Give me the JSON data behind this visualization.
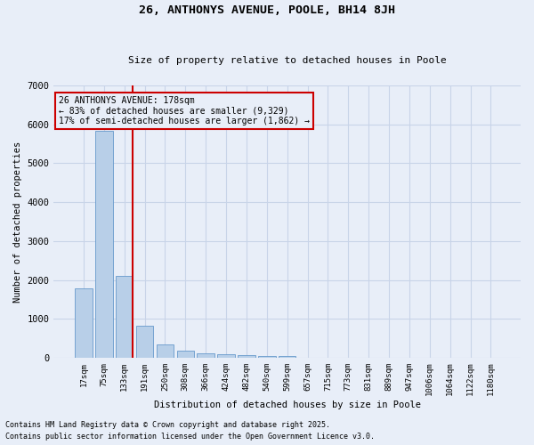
{
  "title1": "26, ANTHONYS AVENUE, POOLE, BH14 8JH",
  "title2": "Size of property relative to detached houses in Poole",
  "xlabel": "Distribution of detached houses by size in Poole",
  "ylabel": "Number of detached properties",
  "categories": [
    "17sqm",
    "75sqm",
    "133sqm",
    "191sqm",
    "250sqm",
    "308sqm",
    "366sqm",
    "424sqm",
    "482sqm",
    "540sqm",
    "599sqm",
    "657sqm",
    "715sqm",
    "773sqm",
    "831sqm",
    "889sqm",
    "947sqm",
    "1006sqm",
    "1064sqm",
    "1122sqm",
    "1180sqm"
  ],
  "values": [
    1780,
    5840,
    2100,
    820,
    340,
    185,
    110,
    90,
    70,
    55,
    45,
    0,
    0,
    0,
    0,
    0,
    0,
    0,
    0,
    0,
    0
  ],
  "bar_color": "#b8cfe8",
  "bar_edge_color": "#6699cc",
  "vline_color": "#cc0000",
  "annotation_text": "26 ANTHONYS AVENUE: 178sqm\n← 83% of detached houses are smaller (9,329)\n17% of semi-detached houses are larger (1,862) →",
  "annotation_box_color": "#cc0000",
  "ylim": [
    0,
    7000
  ],
  "yticks": [
    0,
    1000,
    2000,
    3000,
    4000,
    5000,
    6000,
    7000
  ],
  "grid_color": "#c8d4e8",
  "bg_color": "#e8eef8",
  "footer1": "Contains HM Land Registry data © Crown copyright and database right 2025.",
  "footer2": "Contains public sector information licensed under the Open Government Licence v3.0."
}
